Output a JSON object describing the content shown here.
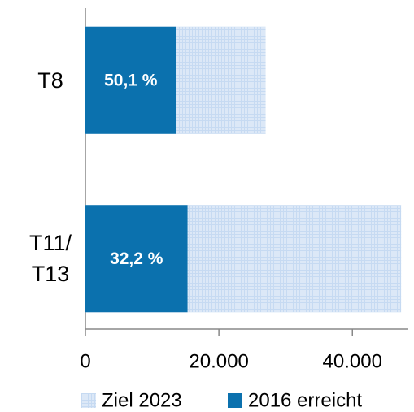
{
  "chart_data": {
    "type": "bar",
    "orientation": "horizontal",
    "overlap": true,
    "categories": [
      "T8",
      "T11/\nT13"
    ],
    "series": [
      {
        "name": "Ziel 2023",
        "color": "#c6daf2",
        "values": [
          27000,
          47300
        ]
      },
      {
        "name": "2016 erreicht",
        "color": "#0b71ae",
        "values": [
          13600,
          15300
        ]
      }
    ],
    "annotations": [
      "50,1 %",
      "32,2 %"
    ],
    "xlim": [
      0,
      48500
    ],
    "xticks": [
      0,
      {
        "value": 20000,
        "label": "20.000"
      },
      {
        "value": 40000,
        "label": "40.000"
      }
    ],
    "grid": false,
    "legend": "bottom"
  }
}
